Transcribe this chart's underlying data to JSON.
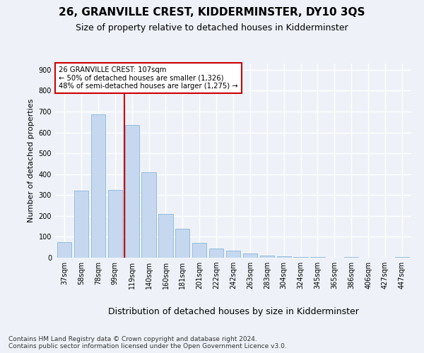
{
  "title": "26, GRANVILLE CREST, KIDDERMINSTER, DY10 3QS",
  "subtitle": "Size of property relative to detached houses in Kidderminster",
  "xlabel": "Distribution of detached houses by size in Kidderminster",
  "ylabel": "Number of detached properties",
  "categories": [
    "37sqm",
    "58sqm",
    "78sqm",
    "99sqm",
    "119sqm",
    "140sqm",
    "160sqm",
    "181sqm",
    "201sqm",
    "222sqm",
    "242sqm",
    "263sqm",
    "283sqm",
    "304sqm",
    "324sqm",
    "345sqm",
    "365sqm",
    "386sqm",
    "406sqm",
    "427sqm",
    "447sqm"
  ],
  "values": [
    75,
    320,
    685,
    325,
    635,
    410,
    210,
    140,
    70,
    45,
    35,
    20,
    10,
    8,
    5,
    5,
    0,
    5,
    0,
    0,
    5
  ],
  "bar_color": "#c5d8f0",
  "bar_edgecolor": "#7aadd4",
  "bar_width": 0.85,
  "vline_x": 3.57,
  "vline_color": "#cc0000",
  "annotation_text": "26 GRANVILLE CREST: 107sqm\n← 50% of detached houses are smaller (1,326)\n48% of semi-detached houses are larger (1,275) →",
  "annotation_box_color": "#cc0000",
  "ylim": [
    0,
    930
  ],
  "yticks": [
    0,
    100,
    200,
    300,
    400,
    500,
    600,
    700,
    800,
    900
  ],
  "footer": "Contains HM Land Registry data © Crown copyright and database right 2024.\nContains public sector information licensed under the Open Government Licence v3.0.",
  "bg_color": "#eef2f8",
  "grid_color": "#ffffff",
  "title_fontsize": 11,
  "subtitle_fontsize": 9,
  "xlabel_fontsize": 9,
  "ylabel_fontsize": 8,
  "tick_fontsize": 7,
  "footer_fontsize": 6.5
}
